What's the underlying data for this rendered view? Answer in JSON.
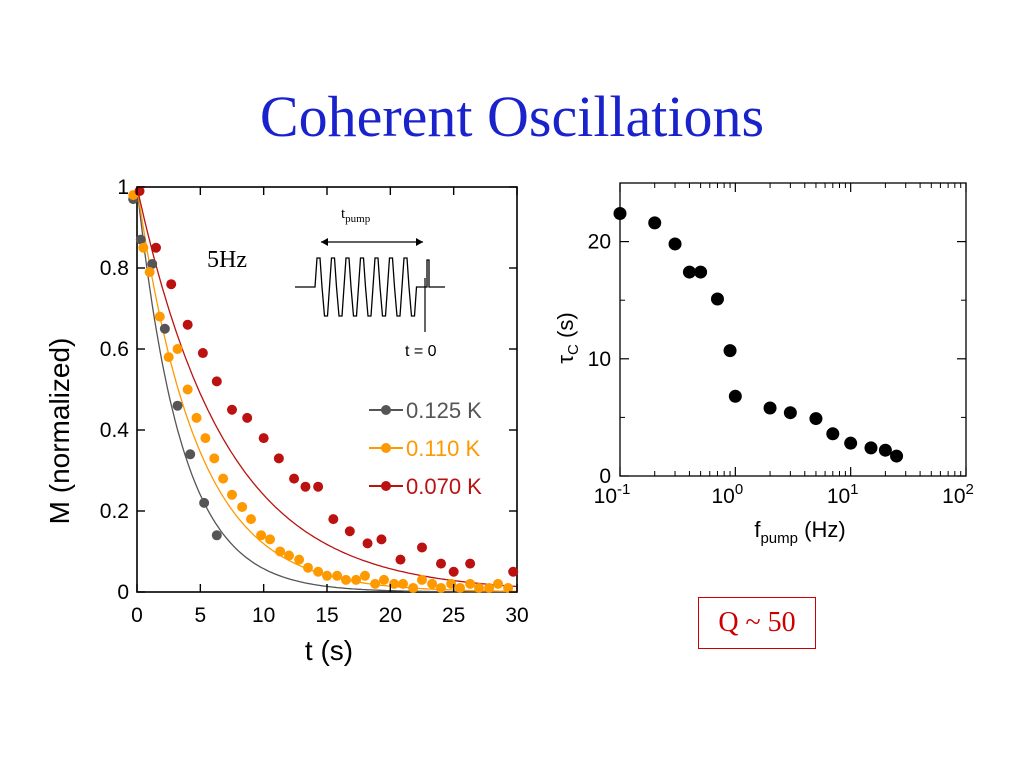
{
  "slide_title": "Coherent Oscillations",
  "q_label": "Q ~ 50",
  "chart_data": [
    {
      "type": "scatter",
      "ylabel": "M (normalized)",
      "xlabel": "t (s)",
      "xlim": [
        0,
        30
      ],
      "ylim": [
        0,
        1
      ],
      "x_ticks": [
        0,
        5,
        10,
        15,
        20,
        25,
        30
      ],
      "y_ticks": [
        0,
        0.2,
        0.4,
        0.6,
        0.8,
        1
      ],
      "x_tick_labels": [
        "0",
        "5",
        "10",
        "15",
        "20",
        "25",
        "30"
      ],
      "y_tick_labels": [
        "0",
        "0.2",
        "0.4",
        "0.6",
        "0.8",
        "1"
      ],
      "annotation": "5Hz",
      "inset": {
        "label_main": "t",
        "label_sub": "pump",
        "marker_label": "t = 0"
      },
      "legend_position": "center-right",
      "series": [
        {
          "name": "0.125 K",
          "color": "#555555",
          "tau": 3.5,
          "x": [
            -0.3,
            0.3,
            1.2,
            2.2,
            3.2,
            4.2,
            5.3,
            6.3
          ],
          "y": [
            0.97,
            0.87,
            0.81,
            0.65,
            0.46,
            0.34,
            0.22,
            0.14
          ]
        },
        {
          "name": "0.110 K",
          "color": "#ff9900",
          "tau": 4.7,
          "x": [
            -0.3,
            0.5,
            1.0,
            1.8,
            2.5,
            3.2,
            4.0,
            4.7,
            5.4,
            6.1,
            6.8,
            7.5,
            8.3,
            9.0,
            9.8,
            10.5,
            11.3,
            12.0,
            12.8,
            13.5,
            14.3,
            15.0,
            15.8,
            16.5,
            17.3,
            18.0,
            18.8,
            19.5,
            20.3,
            21.0,
            21.8,
            22.5,
            23.3,
            24.0,
            24.8,
            25.5,
            26.3,
            27.0,
            27.8,
            28.5,
            29.3
          ],
          "y": [
            0.98,
            0.85,
            0.79,
            0.68,
            0.58,
            0.6,
            0.5,
            0.43,
            0.38,
            0.33,
            0.28,
            0.24,
            0.21,
            0.18,
            0.14,
            0.13,
            0.1,
            0.09,
            0.08,
            0.06,
            0.05,
            0.04,
            0.04,
            0.03,
            0.03,
            0.04,
            0.02,
            0.03,
            0.02,
            0.02,
            0.01,
            0.03,
            0.02,
            0.01,
            0.02,
            0.01,
            0.02,
            0.01,
            0.01,
            0.02,
            0.01
          ]
        },
        {
          "name": "0.070 K",
          "color": "#bb1111",
          "tau": 7.0,
          "x": [
            0.2,
            1.5,
            2.7,
            4.0,
            5.2,
            6.3,
            7.5,
            8.7,
            10.0,
            11.2,
            12.4,
            13.3,
            14.3,
            15.5,
            16.8,
            18.2,
            19.3,
            20.8,
            22.5,
            24.0,
            25.0,
            26.3,
            29.7
          ],
          "y": [
            0.99,
            0.85,
            0.76,
            0.66,
            0.59,
            0.52,
            0.45,
            0.43,
            0.38,
            0.33,
            0.28,
            0.26,
            0.26,
            0.18,
            0.15,
            0.12,
            0.13,
            0.08,
            0.11,
            0.07,
            0.05,
            0.07,
            0.05
          ]
        }
      ]
    },
    {
      "type": "scatter",
      "xscale": "log",
      "xlim": [
        0.1,
        100
      ],
      "ylim": [
        0,
        25
      ],
      "xlabel_main": "f",
      "xlabel_sub": "pump",
      "xlabel_tail": " (Hz)",
      "ylabel_main": "τ",
      "ylabel_sub": "C",
      "ylabel_tail": " (s)",
      "x_tick_base": "10",
      "x_tick_exponents": [
        "-1",
        "0",
        "1",
        "2"
      ],
      "y_ticks": [
        0,
        10,
        20
      ],
      "y_tick_labels": [
        "0",
        "10",
        "20"
      ],
      "series": [
        {
          "name": "tau_C",
          "color": "#000000",
          "x": [
            0.1,
            0.2,
            0.3,
            0.4,
            0.5,
            0.7,
            0.9,
            1.0,
            2.0,
            3.0,
            5.0,
            7.0,
            10.0,
            15.0,
            20.0,
            25.0
          ],
          "y": [
            22.4,
            21.6,
            19.8,
            17.4,
            17.4,
            15.1,
            10.7,
            6.8,
            5.8,
            5.4,
            4.9,
            3.6,
            2.8,
            2.4,
            2.2,
            1.7
          ]
        }
      ]
    }
  ]
}
